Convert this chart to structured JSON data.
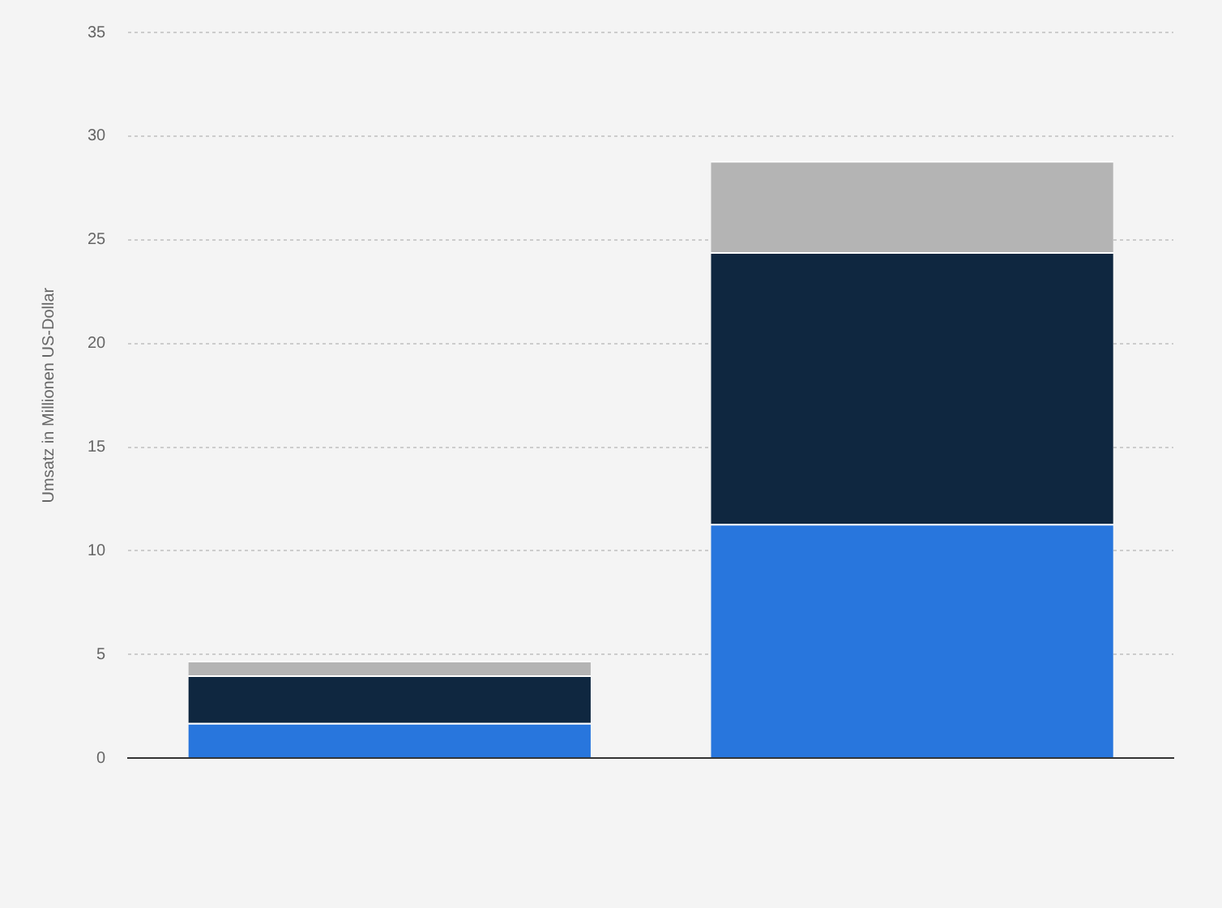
{
  "chart_data": {
    "type": "bar",
    "stacked": true,
    "ylabel": "Umsatz in Millionen US-Dollar",
    "categories": [
      null,
      null
    ],
    "series": [
      {
        "color": "#2876dd",
        "values": [
          1.7,
          11.3
        ]
      },
      {
        "color": "#0f2740",
        "values": [
          2.3,
          13.1
        ]
      },
      {
        "color": "#b4b4b4",
        "values": [
          0.7,
          4.4
        ]
      }
    ],
    "ylim": [
      0,
      35
    ],
    "yticks": [
      0,
      5,
      10,
      15,
      20,
      25,
      30,
      35
    ],
    "grid": "y",
    "legend": false
  }
}
